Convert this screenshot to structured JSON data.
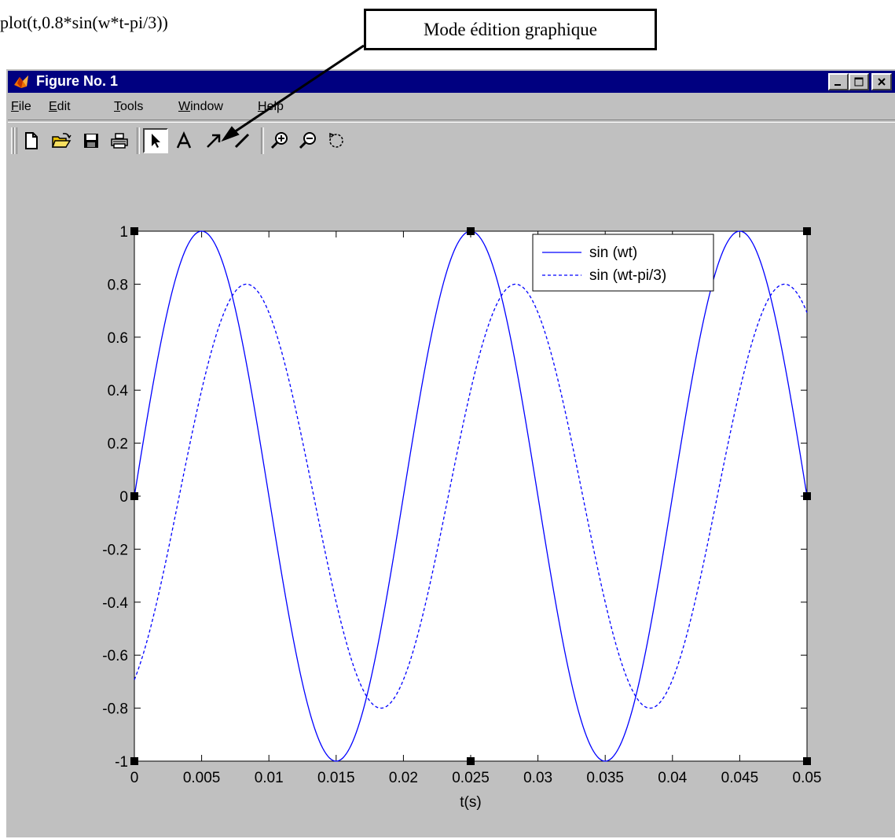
{
  "caption": "plot(t,0.8*sin(w*t-pi/3))",
  "callout": "Mode édition graphique",
  "window": {
    "title": "Figure No. 1"
  },
  "menu": [
    {
      "name": "menu-file",
      "mnemonic": "F",
      "rest": "ile"
    },
    {
      "name": "menu-edit",
      "mnemonic": "E",
      "rest": "dit"
    },
    {
      "name": "menu-tools",
      "mnemonic": "T",
      "rest": "ools"
    },
    {
      "name": "menu-window",
      "mnemonic": "W",
      "rest": "indow"
    },
    {
      "name": "menu-help",
      "mnemonic": "H",
      "rest": "elp"
    }
  ],
  "toolbar": [
    {
      "name": "new-figure-icon"
    },
    {
      "name": "open-folder-icon"
    },
    {
      "name": "save-icon"
    },
    {
      "name": "print-icon"
    },
    {
      "name": "edit-plot-arrow-icon",
      "active": true
    },
    {
      "name": "insert-text-icon"
    },
    {
      "name": "insert-arrow-icon"
    },
    {
      "name": "insert-line-icon"
    },
    {
      "name": "zoom-in-icon"
    },
    {
      "name": "zoom-out-icon"
    },
    {
      "name": "rotate-3d-icon"
    }
  ],
  "colors": {
    "titlebar": "#000080",
    "window_bg": "#c0c0c0",
    "series": "#0000ff"
  },
  "chart_data": {
    "type": "line",
    "title": "",
    "xlabel": "t(s)",
    "ylabel": "",
    "xlim": [
      0,
      0.05
    ],
    "ylim": [
      -1,
      1
    ],
    "x_ticks": [
      "0",
      "0.005",
      "0.01",
      "0.015",
      "0.02",
      "0.025",
      "0.03",
      "0.035",
      "0.04",
      "0.045",
      "0.05"
    ],
    "y_ticks": [
      "-1",
      "-0.8",
      "-0.6",
      "-0.4",
      "-0.2",
      "0",
      "0.2",
      "0.4",
      "0.6",
      "0.8",
      "1"
    ],
    "grid": false,
    "legend_position": "top-right",
    "frequency_hz": 50,
    "series": [
      {
        "name": "sin (wt)",
        "style": "solid",
        "amplitude": 1,
        "phase": 0
      },
      {
        "name": "sin (wt-pi/3)",
        "style": "dashed",
        "amplitude": 0.8,
        "phase": -1.0471975512
      }
    ]
  }
}
